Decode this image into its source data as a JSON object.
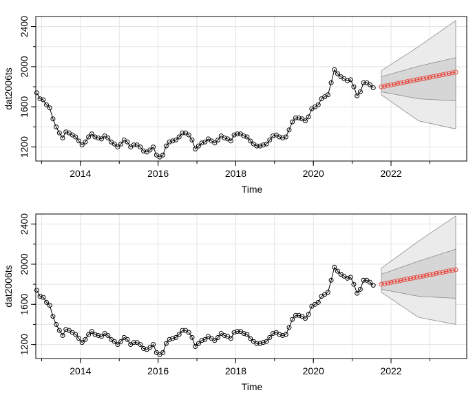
{
  "chart_data": [
    {
      "type": "line",
      "xlabel": "Time",
      "ylabel": "dat2006ts",
      "xlim": [
        2012.85,
        2023.95
      ],
      "ylim": [
        1060,
        2500
      ],
      "x_ticks": [
        2014,
        2016,
        2018,
        2020,
        2022
      ],
      "y_ticks": [
        1200,
        1600,
        2000,
        2400
      ],
      "grid": true,
      "series": [
        {
          "role": "observed",
          "x_start": 2012.875,
          "x_step": 0.0833333,
          "values": [
            1740,
            1680,
            1670,
            1620,
            1590,
            1480,
            1400,
            1340,
            1290,
            1350,
            1340,
            1320,
            1300,
            1260,
            1220,
            1250,
            1300,
            1330,
            1300,
            1290,
            1280,
            1310,
            1290,
            1250,
            1230,
            1200,
            1230,
            1270,
            1250,
            1200,
            1220,
            1220,
            1200,
            1160,
            1150,
            1170,
            1200,
            1120,
            1100,
            1120,
            1210,
            1250,
            1260,
            1270,
            1300,
            1340,
            1340,
            1320,
            1270,
            1180,
            1210,
            1240,
            1250,
            1280,
            1260,
            1240,
            1270,
            1310,
            1290,
            1280,
            1260,
            1320,
            1330,
            1330,
            1310,
            1300,
            1260,
            1230,
            1210,
            1210,
            1220,
            1230,
            1270,
            1310,
            1320,
            1300,
            1290,
            1300,
            1370,
            1450,
            1490,
            1490,
            1480,
            1460,
            1500,
            1580,
            1600,
            1620,
            1680,
            1700,
            1720,
            1840,
            1970,
            1930,
            1900,
            1880,
            1860,
            1870,
            1800,
            1710,
            1750,
            1840,
            1840,
            1820,
            1790
          ]
        },
        {
          "role": "forecast",
          "x_start": 2021.75,
          "x_step": 0.0833333,
          "values": [
            1800,
            1806,
            1813,
            1819,
            1825,
            1832,
            1838,
            1844,
            1851,
            1857,
            1863,
            1870,
            1876,
            1882,
            1889,
            1895,
            1901,
            1908,
            1914,
            1920,
            1927,
            1933,
            1939,
            1945
          ]
        }
      ],
      "intervals": [
        {
          "level": "80",
          "upper": [
            1900,
            2005,
            2090
          ],
          "lower": [
            1750,
            1680,
            1660
          ]
        },
        {
          "level": "95",
          "upper": [
            1960,
            2200,
            2460
          ],
          "lower": [
            1720,
            1460,
            1380
          ]
        }
      ],
      "colors": {
        "observed": "#000000",
        "forecast": "#e8453c",
        "band80": "#d6d6d6",
        "band95": "#ebebeb",
        "band_edge": "#8c8c8c",
        "grid": "#e3e3e3"
      }
    },
    {
      "type": "line",
      "xlabel": "Time",
      "ylabel": "dat2006ts",
      "xlim": [
        2012.85,
        2023.95
      ],
      "ylim": [
        1060,
        2500
      ],
      "x_ticks": [
        2014,
        2016,
        2018,
        2020,
        2022
      ],
      "y_ticks": [
        1200,
        1600,
        2000,
        2400
      ],
      "grid": true,
      "series": [
        {
          "role": "observed",
          "x_start": 2012.875,
          "x_step": 0.0833333,
          "values": [
            1740,
            1680,
            1670,
            1620,
            1590,
            1480,
            1400,
            1340,
            1290,
            1350,
            1340,
            1320,
            1300,
            1260,
            1220,
            1250,
            1300,
            1330,
            1300,
            1290,
            1280,
            1310,
            1290,
            1250,
            1230,
            1200,
            1230,
            1270,
            1250,
            1200,
            1220,
            1220,
            1200,
            1160,
            1150,
            1170,
            1200,
            1120,
            1100,
            1120,
            1210,
            1250,
            1260,
            1270,
            1300,
            1340,
            1340,
            1320,
            1270,
            1180,
            1210,
            1240,
            1250,
            1280,
            1260,
            1240,
            1270,
            1310,
            1290,
            1280,
            1260,
            1320,
            1330,
            1330,
            1310,
            1300,
            1260,
            1230,
            1210,
            1210,
            1220,
            1230,
            1270,
            1310,
            1320,
            1300,
            1290,
            1300,
            1370,
            1450,
            1490,
            1490,
            1480,
            1460,
            1500,
            1580,
            1600,
            1620,
            1680,
            1700,
            1720,
            1840,
            1970,
            1930,
            1900,
            1880,
            1860,
            1870,
            1800,
            1710,
            1750,
            1840,
            1840,
            1820,
            1790
          ]
        },
        {
          "role": "forecast",
          "x_start": 2021.75,
          "x_step": 0.0833333,
          "values": [
            1800,
            1806,
            1813,
            1819,
            1825,
            1832,
            1838,
            1844,
            1851,
            1857,
            1863,
            1870,
            1876,
            1882,
            1889,
            1895,
            1901,
            1908,
            1914,
            1920,
            1927,
            1933,
            1939,
            1945
          ]
        }
      ],
      "intervals": [
        {
          "level": "80",
          "upper": [
            1900,
            2030,
            2150
          ],
          "lower": [
            1750,
            1680,
            1660
          ]
        },
        {
          "level": "95",
          "upper": [
            1960,
            2230,
            2480
          ],
          "lower": [
            1720,
            1470,
            1400
          ]
        }
      ],
      "colors": {
        "observed": "#000000",
        "forecast": "#e8453c",
        "band80": "#d6d6d6",
        "band95": "#ebebeb",
        "band_edge": "#8c8c8c",
        "grid": "#e3e3e3"
      }
    }
  ]
}
